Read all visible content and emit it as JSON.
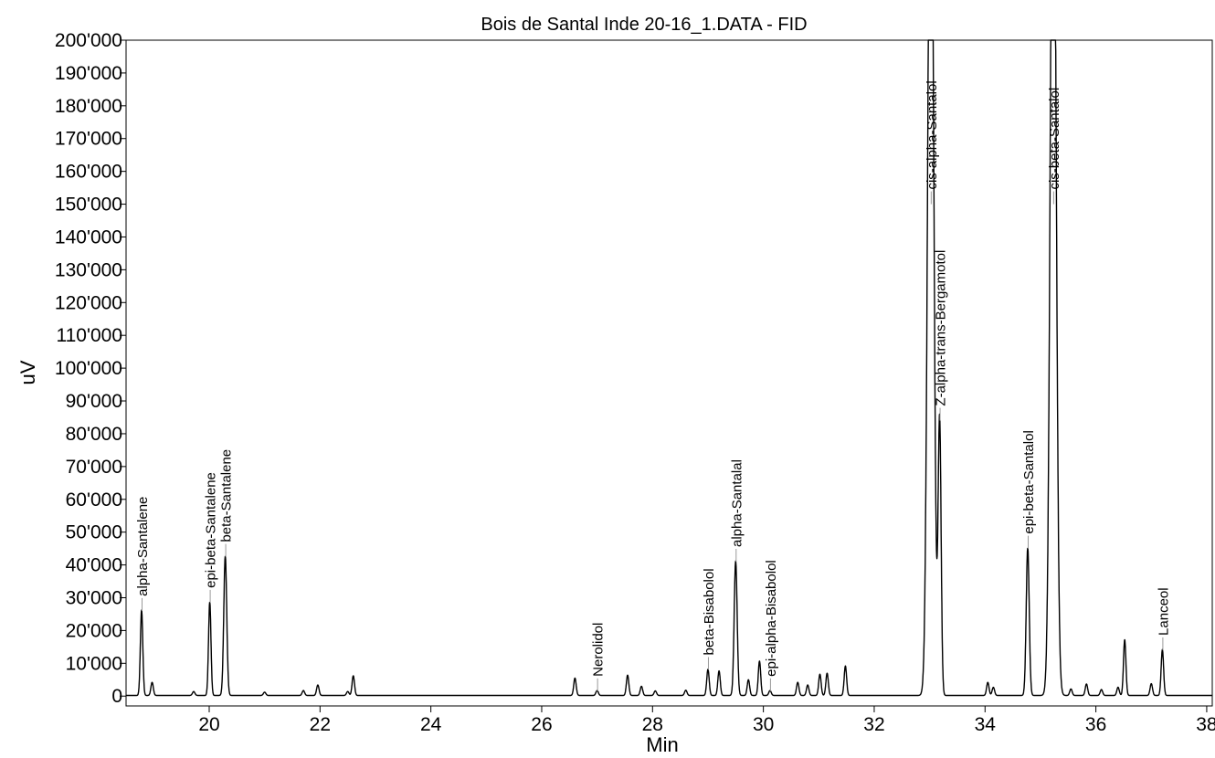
{
  "chart_data": {
    "type": "line",
    "title": "Bois de Santal Inde 20-16_1.DATA - FID",
    "xlabel": "Min",
    "ylabel": "uV",
    "xlim": [
      18.5,
      38.1
    ],
    "ylim": [
      -3000,
      200000
    ],
    "grid": false,
    "legend": "none",
    "line_color": "#000000",
    "x_ticks": [
      20,
      22,
      24,
      26,
      28,
      30,
      32,
      34,
      36,
      38
    ],
    "x_tick_labels": [
      "20",
      "22",
      "24",
      "26",
      "28",
      "30",
      "32",
      "34",
      "36",
      "38"
    ],
    "y_ticks": [
      0,
      10000,
      20000,
      30000,
      40000,
      50000,
      60000,
      70000,
      80000,
      90000,
      100000,
      110000,
      120000,
      130000,
      140000,
      150000,
      160000,
      170000,
      180000,
      190000,
      200000
    ],
    "y_tick_labels": [
      "0",
      "10'000",
      "20'000",
      "30'000",
      "40'000",
      "50'000",
      "60'000",
      "70'000",
      "80'000",
      "90'000",
      "100'000",
      "110'000",
      "120'000",
      "130'000",
      "140'000",
      "150'000",
      "160'000",
      "170'000",
      "180'000",
      "190'000",
      "200'000"
    ],
    "peaks": [
      {
        "rt": 18.78,
        "height": 26000,
        "label": "alpha-Santalene"
      },
      {
        "rt": 18.97,
        "height": 4000
      },
      {
        "rt": 19.72,
        "height": 1200
      },
      {
        "rt": 20.01,
        "height": 28500,
        "label": "epi-beta-Santalene"
      },
      {
        "rt": 20.29,
        "height": 42500,
        "label": "beta-Santalene"
      },
      {
        "rt": 21.0,
        "height": 1000
      },
      {
        "rt": 21.7,
        "height": 1500
      },
      {
        "rt": 21.96,
        "height": 3200
      },
      {
        "rt": 22.5,
        "height": 1200
      },
      {
        "rt": 22.6,
        "height": 6000
      },
      {
        "rt": 26.6,
        "height": 5300
      },
      {
        "rt": 27.0,
        "height": 1500,
        "label": "Nerolidol"
      },
      {
        "rt": 27.55,
        "height": 6200
      },
      {
        "rt": 27.8,
        "height": 2800
      },
      {
        "rt": 28.05,
        "height": 1400
      },
      {
        "rt": 28.6,
        "height": 1600
      },
      {
        "rt": 29.0,
        "height": 8000,
        "label": "beta-Bisabolol"
      },
      {
        "rt": 29.2,
        "height": 7500
      },
      {
        "rt": 29.5,
        "height": 41000,
        "label": "alpha-Santalal"
      },
      {
        "rt": 29.73,
        "height": 4800
      },
      {
        "rt": 29.93,
        "height": 10500
      },
      {
        "rt": 30.12,
        "height": 1500,
        "label": "epi-alpha-Bisabolol"
      },
      {
        "rt": 30.62,
        "height": 4000
      },
      {
        "rt": 30.8,
        "height": 3200
      },
      {
        "rt": 31.02,
        "height": 6500
      },
      {
        "rt": 31.15,
        "height": 6800
      },
      {
        "rt": 31.48,
        "height": 9000
      },
      {
        "rt": 33.02,
        "height": 300000,
        "label": "cis-alpha-Santalol"
      },
      {
        "rt": 33.18,
        "height": 84000,
        "label": "Z-alpha-trans-Bergamotol"
      },
      {
        "rt": 34.05,
        "height": 4000
      },
      {
        "rt": 34.15,
        "height": 2500
      },
      {
        "rt": 34.77,
        "height": 45000,
        "label": "epi-beta-Santalol"
      },
      {
        "rt": 35.23,
        "height": 300000,
        "label": "cis-beta-Santalol"
      },
      {
        "rt": 35.55,
        "height": 2000
      },
      {
        "rt": 35.83,
        "height": 3500
      },
      {
        "rt": 36.1,
        "height": 1800
      },
      {
        "rt": 36.4,
        "height": 2500
      },
      {
        "rt": 36.52,
        "height": 17000
      },
      {
        "rt": 37.0,
        "height": 3600
      },
      {
        "rt": 37.2,
        "height": 14000,
        "label": "Lanceol"
      }
    ]
  }
}
